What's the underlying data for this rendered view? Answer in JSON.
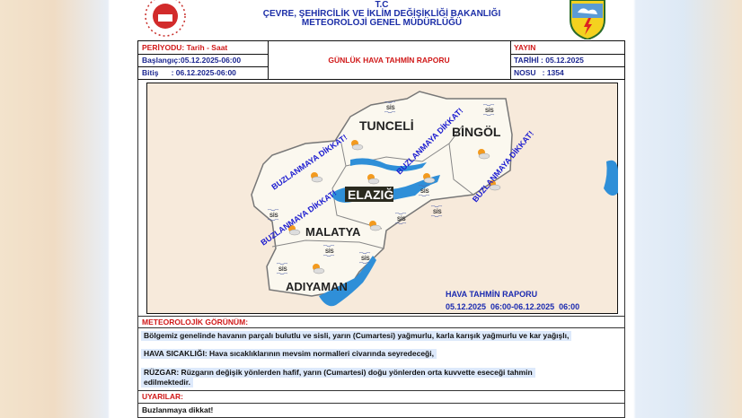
{
  "header": {
    "line0": "T.C",
    "line1": "ÇEVRE, ŞEHİRCİLİK VE İKLİM DEĞİŞİKLİĞİ BAKANLIĞI",
    "line2": "METEOROLOJİ GENEL MÜDÜRLÜĞÜ"
  },
  "logos": {
    "left": "ministry-seal",
    "right": "mgm-logo"
  },
  "info": {
    "period_label": "PERİYODU: Tarih - Saat",
    "start": "Başlangıç:05.12.2025-06:00",
    "end": "Bitiş      : 06.12.2025-06:00",
    "title": "GÜNLÜK HAVA TAHMİN RAPORU",
    "publish_label": "YAYIN",
    "publish_date": "TARİHİ : 05.12.2025",
    "number": "NOSU   : 1354"
  },
  "map": {
    "cities": [
      "TUNCELİ",
      "BİNGÖL",
      "ELAZIĞ",
      "MALATYA",
      "ADIYAMAN"
    ],
    "warning": "BUZLANMAYA DİKKAT!",
    "sis_label": "SİS",
    "legend_title": "HAVA TAHMİN RAPORU",
    "legend_period": "05.12.2025  06:00-06.12.2025  06:00",
    "colors": {
      "land": "#fbf8ef",
      "outside": "#f7eadb",
      "water": "#2f8fd8",
      "warning": "#1b1bd0"
    }
  },
  "sections": {
    "outlook_label": "METEOROLOJİK GÖRÜNÜM:",
    "outlook": "Bölgemiz genelinde havanın parçalı bulutlu ve sisli, yarın (Cumartesi) yağmurlu, karla karışık yağmurlu ve kar yağışlı,",
    "temp": "HAVA SICAKLIĞI: Hava sıcaklıklarının mevsim normalleri civarında seyredeceği,",
    "wind1": "RÜZGAR: Rüzgarın değişik yönlerden hafif, yarın (Cumartesi) doğu yönlerden orta kuvvette eseceği tahmin",
    "wind2": "edilmektedir.",
    "warnings_label": "UYARILAR:",
    "warning_text": "Buzlanmaya dikkat!"
  }
}
